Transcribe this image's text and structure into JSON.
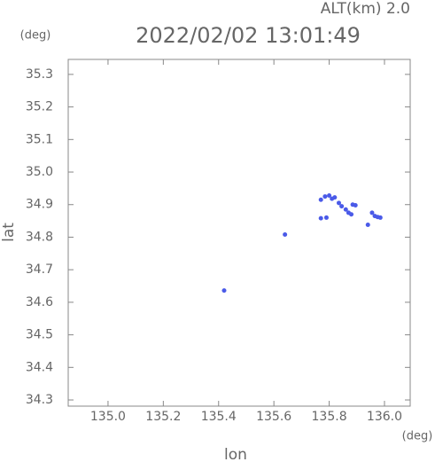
{
  "chart_data": {
    "type": "scatter",
    "title": "2022/02/02 13:01:49",
    "annotation": "ALT(km) 2.0",
    "x_unit": "(deg)",
    "y_unit": "(deg)",
    "x_label": "lon",
    "y_label": "lat",
    "color": "#4a5ae8",
    "x": [
      135.42,
      135.64,
      135.77,
      135.785,
      135.8,
      135.81,
      135.82,
      135.835,
      135.845,
      135.86,
      135.87,
      135.88,
      135.885,
      135.895,
      135.955,
      135.965,
      135.975,
      135.985,
      135.94,
      135.77,
      135.79
    ],
    "y": [
      34.636,
      34.808,
      34.915,
      34.925,
      34.928,
      34.918,
      34.922,
      34.905,
      34.895,
      34.885,
      34.875,
      34.87,
      34.9,
      34.898,
      34.875,
      34.865,
      34.862,
      34.86,
      34.838,
      34.858,
      34.86
    ],
    "xlim": [
      134.856,
      136.093
    ],
    "ylim": [
      34.281,
      35.346
    ],
    "xticks": [
      {
        "value": 135.0,
        "label": "135.0"
      },
      135.2,
      135.4,
      135.6,
      135.8,
      {
        "value": 136.0,
        "label": "136.0"
      }
    ],
    "yticks": [
      34.3,
      34.4,
      34.5,
      34.6,
      34.7,
      34.8,
      34.9,
      {
        "value": 35.0,
        "label": "35.0"
      },
      35.1,
      35.2,
      35.3
    ]
  }
}
